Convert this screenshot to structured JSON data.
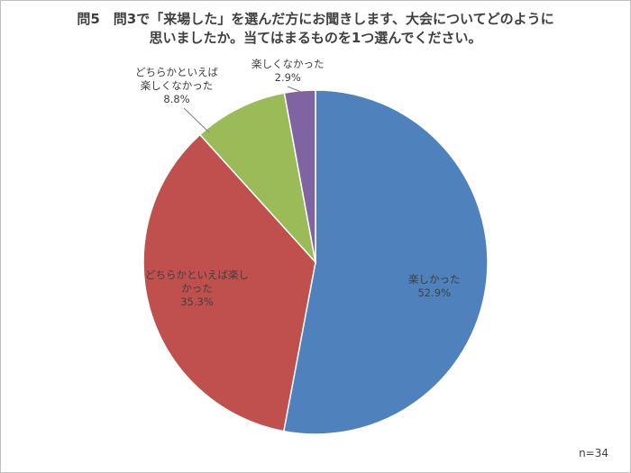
{
  "title": {
    "line1": "問5　問3で「来場した」を選んだ方にお聞きします、大会についてどのように",
    "line2": "思いましたか。当てはまるものを1つ選んでください。"
  },
  "note": "n=34",
  "chart_data": {
    "type": "pie",
    "title": "問5　問3で「来場した」を選んだ方にお聞きします、大会についてどのように思いましたか。当てはまるものを1つ選んでください。",
    "start": "12 o'clock",
    "direction": "clockwise",
    "legend": "none",
    "slices": [
      {
        "label_lines": [
          "楽しかった"
        ],
        "value": 52.9,
        "value_label": "52.9%",
        "color": "#4f81bd"
      },
      {
        "label_lines": [
          "どちらかといえば楽し",
          "かった"
        ],
        "value": 35.3,
        "value_label": "35.3%",
        "color": "#c0504d"
      },
      {
        "label_lines": [
          "どちらかといえば",
          "楽しくなかった"
        ],
        "value": 8.8,
        "value_label": "8.8%",
        "color": "#9bbb59"
      },
      {
        "label_lines": [
          "楽しくなかった"
        ],
        "value": 2.9,
        "value_label": "2.9%",
        "color": "#8064a2"
      }
    ]
  }
}
